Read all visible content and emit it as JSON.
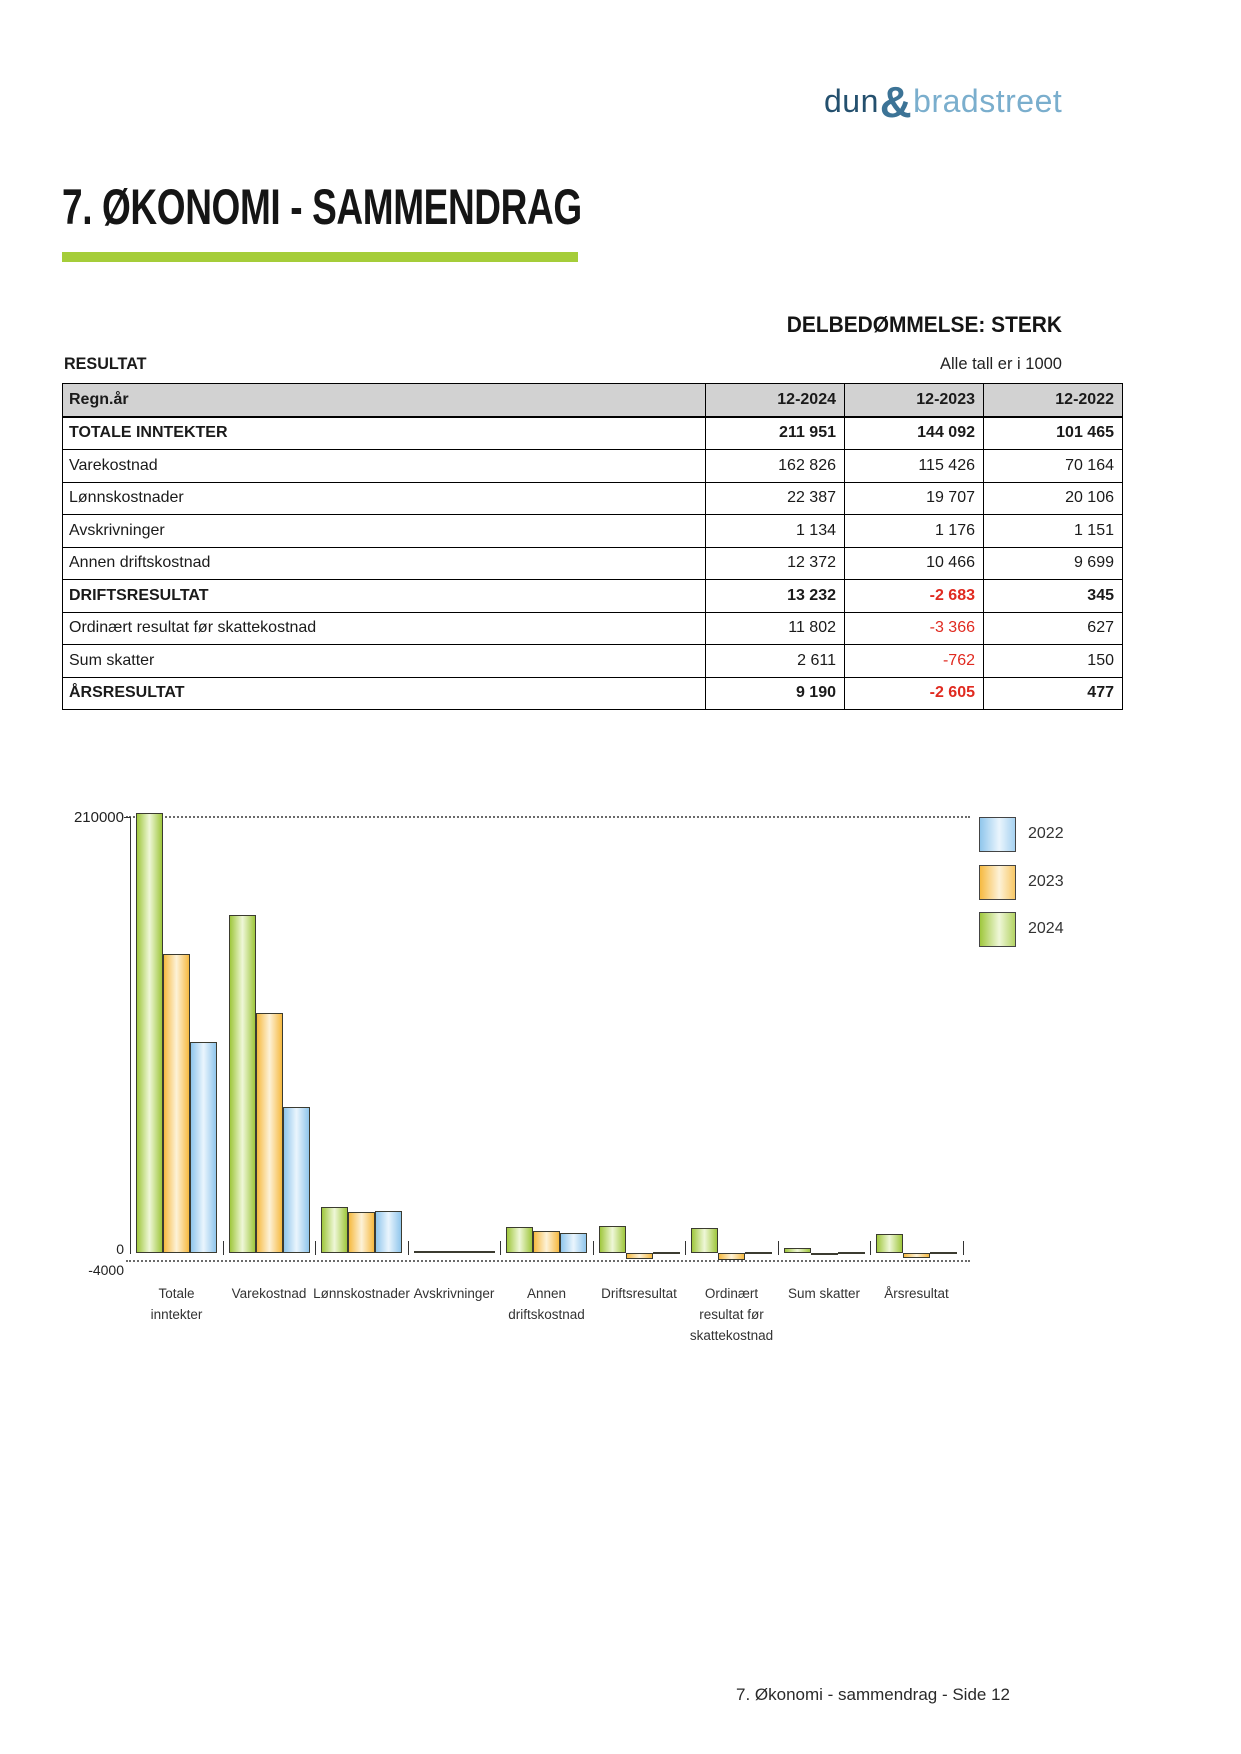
{
  "logo": {
    "part1": "dun",
    "amp": "&",
    "part2": "bradstreet"
  },
  "page": {
    "title": "7. ØKONOMI - SAMMENDRAG",
    "rating": "DELBEDØMMELSE: STERK",
    "section_label": "RESULTAT",
    "units_note": "Alle tall er i 1000",
    "footer": "7. Økonomi - sammendrag - Side 12"
  },
  "colors": {
    "accent_green": "#a5cd39",
    "negative_red": "#e02a20",
    "table_header_gray": "#d2d2d2",
    "series": {
      "2022": {
        "edge": "#90c6ec",
        "light": "#eaf5fd"
      },
      "2023": {
        "edge": "#f6ba41",
        "light": "#fdf2d8"
      },
      "2024": {
        "edge": "#9fc73d",
        "light": "#eff7d8"
      }
    }
  },
  "table": {
    "header": [
      "Regn.år",
      "12-2024",
      "12-2023",
      "12-2022"
    ],
    "rows": [
      {
        "label": "TOTALE INNTEKTER",
        "emphasis": true,
        "values": [
          "211 951",
          "144 092",
          "101 465"
        ]
      },
      {
        "label": "Varekostnad",
        "emphasis": false,
        "values": [
          "162 826",
          "115 426",
          "70 164"
        ]
      },
      {
        "label": "Lønnskostnader",
        "emphasis": false,
        "values": [
          "22 387",
          "19 707",
          "20 106"
        ]
      },
      {
        "label": "Avskrivninger",
        "emphasis": false,
        "values": [
          "1 134",
          "1 176",
          "1 151"
        ]
      },
      {
        "label": "Annen driftskostnad",
        "emphasis": false,
        "values": [
          "12 372",
          "10 466",
          "9 699"
        ]
      },
      {
        "label": "DRIFTSRESULTAT",
        "emphasis": true,
        "values": [
          "13 232",
          "-2 683",
          "345"
        ]
      },
      {
        "label": "Ordinært resultat før skattekostnad",
        "emphasis": false,
        "values": [
          "11 802",
          "-3 366",
          "627"
        ]
      },
      {
        "label": "Sum skatter",
        "emphasis": false,
        "values": [
          "2 611",
          "-762",
          "150"
        ]
      },
      {
        "label": "ÅRSRESULTAT",
        "emphasis": true,
        "values": [
          "9 190",
          "-2 605",
          "477"
        ]
      }
    ]
  },
  "chart_data": {
    "type": "bar",
    "title": "",
    "categories": [
      "Totale inntekter",
      "Varekostnad",
      "Lønnskostnader",
      "Avskrivninger",
      "Annen driftskostnad",
      "Driftsresultat",
      "Ordinært resultat før skattekostnad",
      "Sum skatter",
      "Årsresultat"
    ],
    "category_label_lines": [
      [
        "Totale",
        "inntekter"
      ],
      [
        "Varekostnad"
      ],
      [
        "Lønnskostnader"
      ],
      [
        "Avskrivninger"
      ],
      [
        "Annen",
        "driftskostnad"
      ],
      [
        "Driftsresultat"
      ],
      [
        "Ordinært",
        "resultat før",
        "skattekostnad"
      ],
      [
        "Sum skatter"
      ],
      [
        "Årsresultat"
      ]
    ],
    "series": [
      {
        "name": "2024",
        "values": [
          211951,
          162826,
          22387,
          1134,
          12372,
          13232,
          11802,
          2611,
          9190
        ]
      },
      {
        "name": "2023",
        "values": [
          144092,
          115426,
          19707,
          1176,
          10466,
          -2683,
          -3366,
          -762,
          -2605
        ]
      },
      {
        "name": "2022",
        "values": [
          101465,
          70164,
          20106,
          1151,
          9699,
          345,
          627,
          150,
          477
        ]
      }
    ],
    "bar_order_in_group": [
      "2024",
      "2023",
      "2022"
    ],
    "ylim": [
      -4000,
      210000
    ],
    "yticks": [
      {
        "value": 210000,
        "label": "210000"
      },
      {
        "value": 0,
        "label": "0"
      },
      {
        "value": -4000,
        "label": "-4000"
      }
    ],
    "gridlines_dotted": [
      210000,
      -4000
    ],
    "grid": "dotted horizontal lines at 210000 and -4000 only",
    "legend_position": "right",
    "legend": [
      {
        "label": "2022"
      },
      {
        "label": "2023"
      },
      {
        "label": "2024"
      }
    ]
  }
}
